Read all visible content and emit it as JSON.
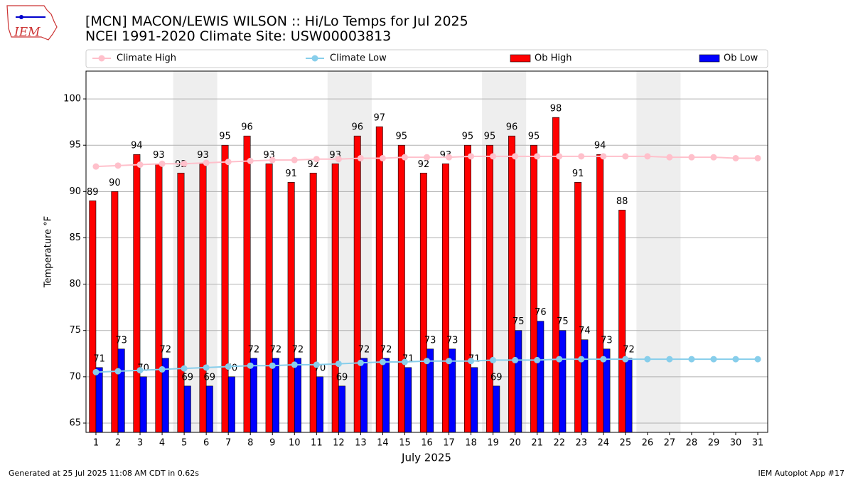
{
  "chart_data": {
    "type": "bar",
    "title": "[MCN] MACON/LEWIS WILSON :: Hi/Lo Temps for Jul 2025",
    "subtitle": "NCEI 1991-2020 Climate Site: USW00003813",
    "x_label": "July 2025",
    "y_label": "Temperature °F",
    "logo": "IEM",
    "footer_left": "Generated at 25 Jul 2025 11:08 AM CDT in 0.62s",
    "footer_right": "IEM Autoplot App #17",
    "x": [
      1,
      2,
      3,
      4,
      5,
      6,
      7,
      8,
      9,
      10,
      11,
      12,
      13,
      14,
      15,
      16,
      17,
      18,
      19,
      20,
      21,
      22,
      23,
      24,
      25,
      26,
      27,
      28,
      29,
      30,
      31
    ],
    "xlim": [
      0.55,
      31.45
    ],
    "xticks": [
      1,
      2,
      3,
      4,
      5,
      6,
      7,
      8,
      9,
      10,
      11,
      12,
      13,
      14,
      15,
      16,
      17,
      18,
      19,
      20,
      21,
      22,
      23,
      24,
      25,
      26,
      27,
      28,
      29,
      30,
      31
    ],
    "ylim": [
      64,
      103
    ],
    "yticks": [
      65,
      70,
      75,
      80,
      85,
      90,
      95,
      100
    ],
    "grid": true,
    "shaded_spans": [
      [
        5,
        6
      ],
      [
        12,
        13
      ],
      [
        19,
        20
      ],
      [
        26,
        27
      ]
    ],
    "series": [
      {
        "name": "Climate High",
        "kind": "line",
        "color": "#ffc0cb",
        "values": [
          92.7,
          92.8,
          92.9,
          93.0,
          93.0,
          93.1,
          93.2,
          93.3,
          93.4,
          93.4,
          93.5,
          93.5,
          93.6,
          93.6,
          93.7,
          93.7,
          93.7,
          93.8,
          93.8,
          93.8,
          93.8,
          93.8,
          93.8,
          93.8,
          93.8,
          93.8,
          93.7,
          93.7,
          93.7,
          93.6,
          93.6
        ]
      },
      {
        "name": "Climate Low",
        "kind": "line",
        "color": "#87ceeb",
        "values": [
          70.5,
          70.6,
          70.7,
          70.8,
          70.9,
          71.0,
          71.1,
          71.2,
          71.2,
          71.3,
          71.3,
          71.4,
          71.5,
          71.6,
          71.6,
          71.7,
          71.7,
          71.7,
          71.8,
          71.8,
          71.8,
          71.9,
          71.9,
          71.9,
          71.9,
          71.9,
          71.9,
          71.9,
          71.9,
          71.9,
          71.9
        ]
      },
      {
        "name": "Ob High",
        "kind": "bar",
        "color": "#ff0000",
        "values": [
          89,
          90,
          94,
          93,
          92,
          93,
          95,
          96,
          93,
          91,
          92,
          93,
          96,
          97,
          95,
          92,
          93,
          95,
          95,
          96,
          95,
          98,
          91,
          94,
          88,
          null,
          null,
          null,
          null,
          null,
          null
        ]
      },
      {
        "name": "Ob Low",
        "kind": "bar",
        "color": "#0000ff",
        "values": [
          71,
          73,
          70,
          72,
          69,
          69,
          70,
          72,
          72,
          72,
          70,
          69,
          72,
          72,
          71,
          73,
          73,
          71,
          69,
          75,
          76,
          75,
          74,
          73,
          72,
          null,
          null,
          null,
          null,
          null,
          null
        ]
      }
    ]
  }
}
